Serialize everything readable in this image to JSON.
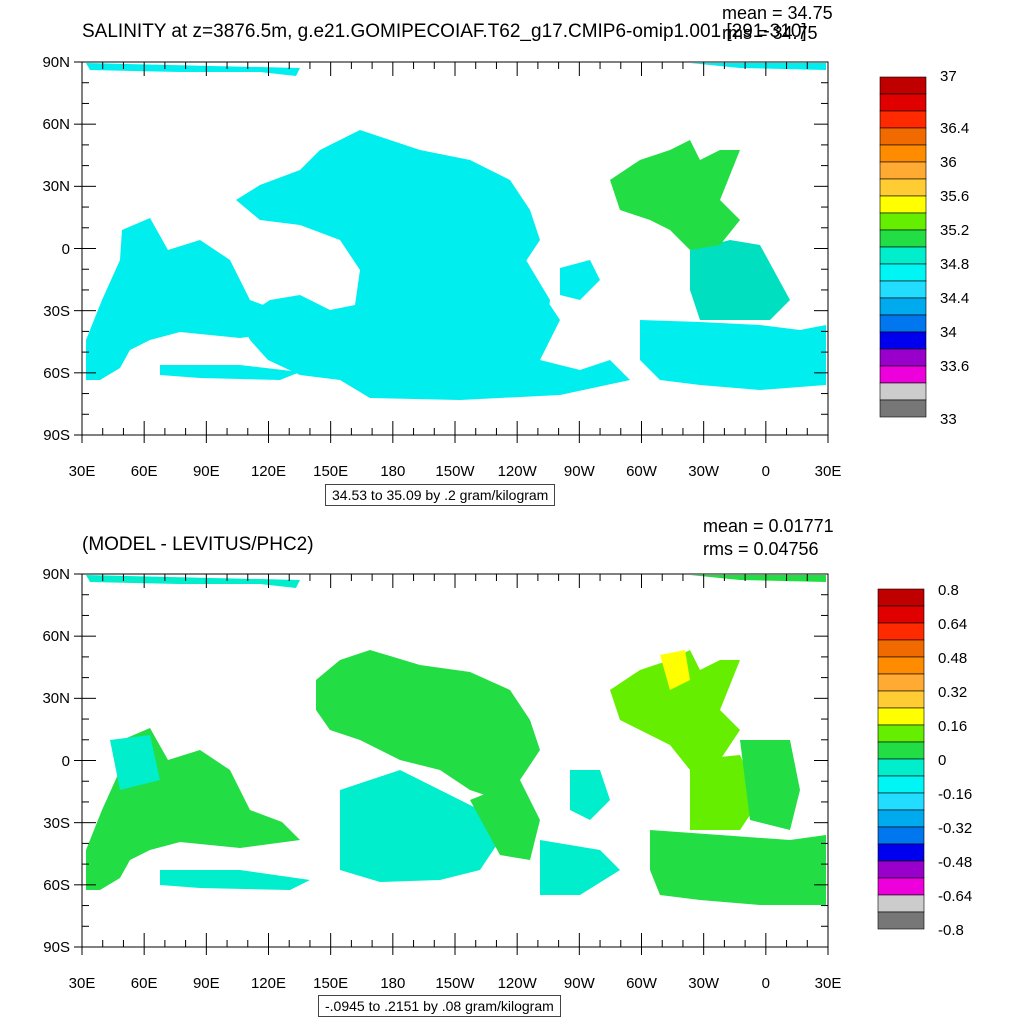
{
  "panels": [
    {
      "id": "top",
      "title": "SALINITY at z=3876.5m, g.e21.GOMIPECOIAF.T62_g17.CMIP6-omip1.001 [291-310]",
      "mean_label": "mean = 34.75",
      "rms_label": "rms = 34.75",
      "info": "34.53 to 35.09 by .2 gram/kilogram",
      "lat_labels": [
        "90N",
        "60N",
        "30N",
        "0",
        "30S",
        "60S",
        "90S"
      ],
      "lon_labels": [
        "30E",
        "60E",
        "90E",
        "120E",
        "150E",
        "180",
        "150W",
        "120W",
        "90W",
        "60W",
        "30W",
        "0",
        "30E"
      ],
      "colorbar_labels": [
        "37",
        "36.4",
        "36",
        "35.6",
        "35.2",
        "34.8",
        "34.4",
        "34",
        "33.6",
        "33"
      ],
      "dominant_fill": "#00eeee",
      "atlantic_fill": "#22dd44"
    },
    {
      "id": "bottom",
      "title": "(MODEL - LEVITUS/PHC2)",
      "mean_label": "mean = 0.01771",
      "rms_label": "rms = 0.04756",
      "info": "-.0945 to .2151 by .08 gram/kilogram",
      "lat_labels": [
        "90N",
        "60N",
        "30N",
        "0",
        "30S",
        "60S",
        "90S"
      ],
      "lon_labels": [
        "30E",
        "60E",
        "90E",
        "120E",
        "150E",
        "180",
        "150W",
        "120W",
        "90W",
        "60W",
        "30W",
        "0",
        "30E"
      ],
      "colorbar_labels": [
        "0.8",
        "0.64",
        "0.48",
        "0.32",
        "0.16",
        "0",
        "-0.16",
        "-0.32",
        "-0.48",
        "-0.64",
        "-0.8"
      ],
      "dominant_fill": "#22dd44",
      "secondary_fill": "#00eecc",
      "atlantic_fill": "#66ee00"
    }
  ],
  "colorbar_colors": [
    "#c00000",
    "#e00000",
    "#ff2a00",
    "#f06a00",
    "#ff8c00",
    "#ffaa33",
    "#ffcc33",
    "#ffff00",
    "#66ee00",
    "#22dd44",
    "#00eecc",
    "#00f5f5",
    "#22ddff",
    "#00aaee",
    "#0077ee",
    "#0000ee",
    "#9900cc",
    "#ee00dd",
    "#cccccc",
    "#777777"
  ]
}
